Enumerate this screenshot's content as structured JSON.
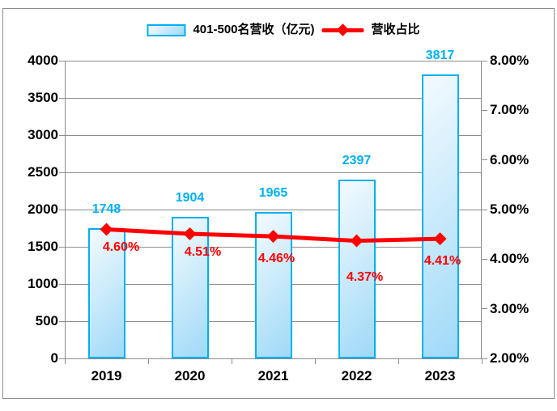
{
  "legend": {
    "bar_label": "401-500名营收（亿元)",
    "line_label": "营收占比"
  },
  "chart_data": {
    "type": "bar",
    "combo": "bar+line",
    "title": "",
    "categories": [
      "2019",
      "2020",
      "2021",
      "2022",
      "2023"
    ],
    "series": [
      {
        "name": "401-500名营收（亿元)",
        "type": "bar",
        "axis": "left",
        "values": [
          1748,
          1904,
          1965,
          2397,
          3817
        ],
        "data_labels": [
          "1748",
          "1904",
          "1965",
          "2397",
          "3817"
        ],
        "fill_from": "#F4FAFE",
        "fill_mid": "#C9EAFB",
        "fill_to": "#9FD9F8",
        "border_color": "#00B0F0",
        "label_color": "#00B0F0"
      },
      {
        "name": "营收占比",
        "type": "line",
        "axis": "right",
        "values": [
          4.6,
          4.51,
          4.46,
          4.37,
          4.41
        ],
        "data_labels": [
          "4.60%",
          "4.51%",
          "4.46%",
          "4.37%",
          "4.41%"
        ],
        "color": "#FF0000",
        "marker": "diamond",
        "label_color": "#FF0000"
      }
    ],
    "left_axis": {
      "min": 0,
      "max": 4000,
      "step": 500,
      "tick_labels": [
        "0",
        "500",
        "1000",
        "1500",
        "2000",
        "2500",
        "3000",
        "3500",
        "4000"
      ]
    },
    "right_axis": {
      "min": 2,
      "max": 8,
      "step": 1,
      "tick_labels": [
        "2.00%",
        "3.00%",
        "4.00%",
        "5.00%",
        "6.00%",
        "7.00%",
        "8.00%"
      ]
    },
    "grid": true,
    "legend_position": "top",
    "gridline_color": "#8c8c8c",
    "axis_line_color": "#8c8c8c",
    "axis_text_color": "#000000"
  }
}
